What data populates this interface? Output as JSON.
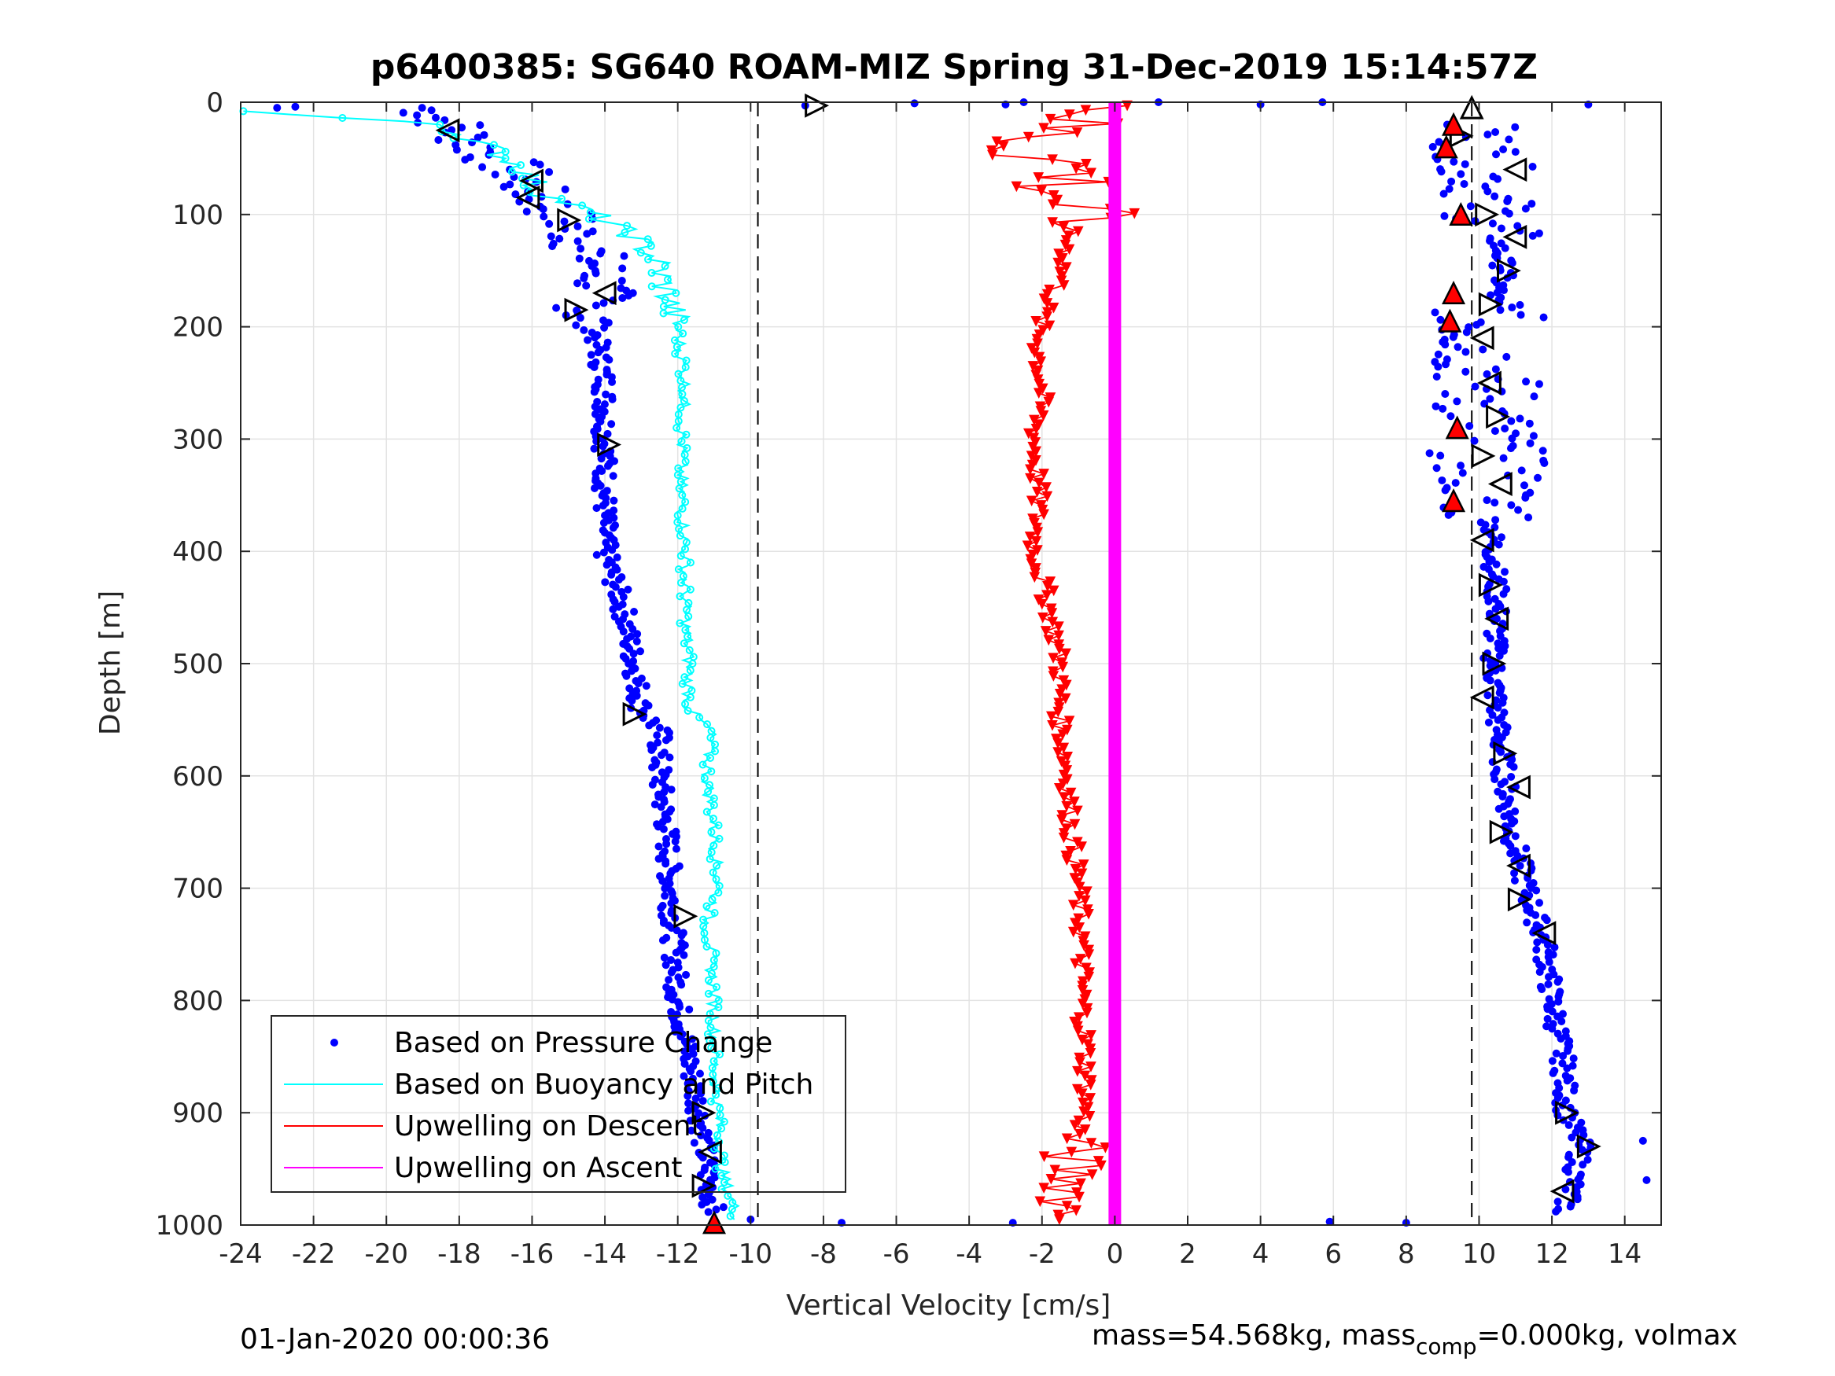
{
  "chart_data": {
    "type": "scatter",
    "title": "p6400385: SG640 ROAM-MIZ Spring 31-Dec-2019 15:14:57Z",
    "xlabel": "Vertical Velocity [cm/s]",
    "ylabel": "Depth [m]",
    "xlim": [
      -24,
      15
    ],
    "ylim": [
      1000,
      0
    ],
    "y_reversed": true,
    "grid": true,
    "x_ticks": [
      -24,
      -22,
      -20,
      -18,
      -16,
      -14,
      -12,
      -10,
      -8,
      -6,
      -4,
      -2,
      0,
      2,
      4,
      6,
      8,
      10,
      12,
      14
    ],
    "y_ticks": [
      0,
      100,
      200,
      300,
      400,
      500,
      600,
      700,
      800,
      900,
      1000
    ],
    "reference_lines_x": [
      -9.8,
      9.8
    ],
    "legend_position": "bottom-left",
    "series": [
      {
        "name": "Based on Pressure Change",
        "style": "dots",
        "color": "#0000ff",
        "descent": {
          "depth": [
            5,
            20,
            40,
            60,
            80,
            100,
            130,
            160,
            190,
            200,
            250,
            300,
            350,
            400,
            450,
            500,
            540,
            560,
            600,
            650,
            700,
            750,
            800,
            850,
            900,
            950,
            990
          ],
          "velocity": [
            -19,
            -18.2,
            -17.5,
            -16.5,
            -16,
            -15.2,
            -14.5,
            -14,
            -14.5,
            -14.3,
            -14,
            -14,
            -14,
            -14,
            -13.5,
            -13.2,
            -13,
            -12.5,
            -12.5,
            -12.3,
            -12.2,
            -12.1,
            -12,
            -11.7,
            -11.4,
            -11.2,
            -11
          ]
        },
        "ascent": {
          "depth": [
            990,
            960,
            930,
            900,
            850,
            800,
            750,
            700,
            650,
            600,
            550,
            500,
            450,
            400,
            350,
            300,
            250,
            200,
            150,
            100,
            60,
            20
          ],
          "velocity": [
            12.3,
            12.6,
            12.8,
            12.4,
            12.3,
            12,
            11.8,
            11.3,
            10.9,
            10.7,
            10.5,
            10.4,
            10.5,
            10.4,
            10.3,
            10.2,
            10.2,
            10.1,
            10.7,
            10.3,
            10.2,
            9.8
          ]
        }
      },
      {
        "name": "Based on Buoyancy and Pitch",
        "style": "line-circles",
        "color": "#00ffff",
        "descent": {
          "depth": [
            8,
            20,
            40,
            60,
            80,
            100,
            120,
            140,
            160,
            180,
            200,
            250,
            300,
            350,
            400,
            450,
            500,
            540,
            560,
            600,
            650,
            700,
            730,
            760,
            800,
            850,
            900,
            950,
            990
          ],
          "velocity": [
            -24,
            -18.5,
            -17.2,
            -16.2,
            -15.8,
            -14.3,
            -13.2,
            -12.6,
            -12.4,
            -12.2,
            -12,
            -11.8,
            -11.9,
            -11.9,
            -11.8,
            -11.8,
            -11.7,
            -11.7,
            -11.1,
            -11.2,
            -11,
            -10.9,
            -11.2,
            -11.1,
            -11,
            -11,
            -10.9,
            -10.8,
            -10.4
          ]
        }
      },
      {
        "name": "Upwelling on Descent",
        "style": "line-triangles",
        "color": "#ff0000",
        "descent": {
          "depth": [
            5,
            20,
            40,
            60,
            80,
            100,
            130,
            160,
            190,
            220,
            260,
            300,
            350,
            400,
            450,
            500,
            550,
            600,
            650,
            700,
            750,
            800,
            850,
            900,
            940,
            970,
            995
          ],
          "velocity": [
            0.3,
            -1.5,
            -2.5,
            -1,
            -1.5,
            -1.2,
            -1.3,
            -1.5,
            -2,
            -2.1,
            -2,
            -2.2,
            -2.1,
            -2.2,
            -1.8,
            -1.5,
            -1.5,
            -1.3,
            -1.2,
            -1,
            -0.9,
            -0.9,
            -0.8,
            -0.8,
            -1.2,
            -1.1,
            -1.5
          ]
        }
      },
      {
        "name": "Upwelling on Ascent",
        "style": "line-triangles",
        "color": "#ff00ff",
        "ascent": {
          "depth": [
            0,
            1000
          ],
          "velocity": [
            0,
            0
          ]
        }
      }
    ],
    "footer_left": "01-Jan-2020 00:00:36",
    "footer_right": {
      "pre": "mass=54.568kg, mass",
      "sub": "comp",
      "post": "=0.000kg, volmax"
    }
  }
}
